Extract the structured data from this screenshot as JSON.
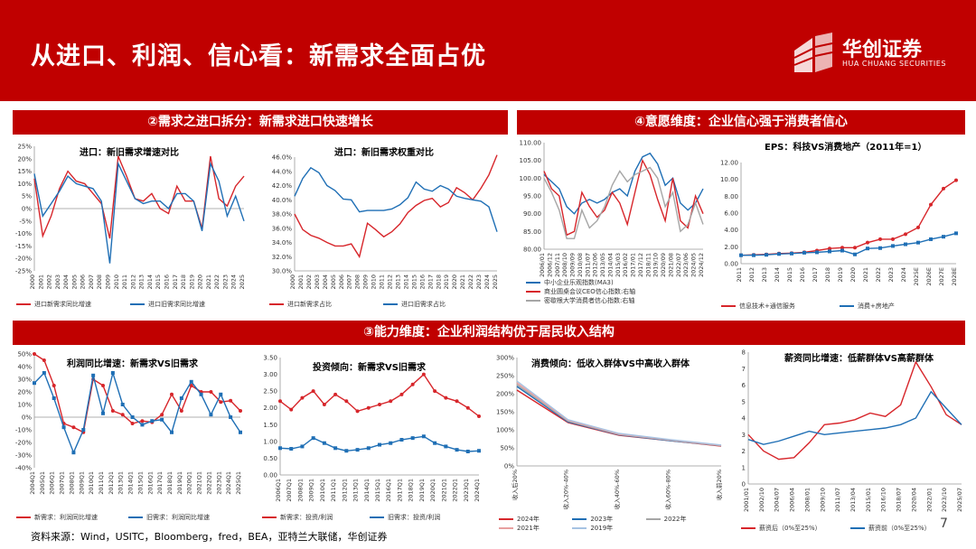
{
  "page": {
    "title": "从进口、利润、信心看：新需求全面占优",
    "logo_cn": "华创证券",
    "logo_en": "HUA CHUANG SECURITIES",
    "band1": "②需求之进口拆分：新需求进口快速增长",
    "band2": "④意愿维度：企业信心强于消费者信心",
    "band3": "③能力维度：企业利润结构优于居民收入结构",
    "source": "资料来源：Wind，USITC，Bloomberg，fred，BEA，亚特兰大联储，华创证券",
    "page_number": "7"
  },
  "colors": {
    "red": "#d7262b",
    "blue": "#1f6fb5",
    "gray": "#a6a6a6",
    "brand": "#c00000"
  },
  "chart_data": [
    {
      "id": "c1",
      "type": "line",
      "title": "进口：新旧需求增速对比",
      "x": [
        "2000",
        "2001",
        "2002",
        "2003",
        "2004",
        "2005",
        "2006",
        "2007",
        "2008",
        "2009",
        "2010",
        "2011",
        "2012",
        "2013",
        "2014",
        "2015",
        "2016",
        "2017",
        "2018",
        "2019",
        "2020",
        "2021",
        "2022",
        "2023",
        "2024",
        "2025"
      ],
      "ylim": [
        -25,
        25
      ],
      "yticks": [
        "25%",
        "20%",
        "15%",
        "10%",
        "5%",
        "0%",
        "-5%",
        "-10%",
        "-15%",
        "-20%",
        "-25%"
      ],
      "series": [
        {
          "name": "进口新需求同比增速",
          "color": "red",
          "values": [
            12,
            -11,
            -3,
            8,
            15,
            11,
            10,
            6,
            2,
            -12,
            21,
            13,
            4,
            3,
            6,
            0,
            -2,
            9,
            3,
            3,
            -8,
            21,
            4,
            1,
            9,
            13
          ]
        },
        {
          "name": "进口旧需求同比增速",
          "color": "blue",
          "values": [
            14,
            -3,
            2,
            7,
            13,
            10,
            9,
            8,
            3,
            -22,
            18,
            11,
            4,
            2,
            3,
            3,
            0,
            6,
            6,
            3,
            -9,
            18,
            11,
            -3,
            5,
            -5
          ]
        }
      ]
    },
    {
      "id": "c2",
      "type": "line",
      "title": "进口：新旧需求权重对比",
      "x": [
        "2000",
        "2001",
        "2002",
        "2003",
        "2004",
        "2005",
        "2006",
        "2007",
        "2008",
        "2009",
        "2010",
        "2011",
        "2012",
        "2013",
        "2014",
        "2015",
        "2016",
        "2017",
        "2018",
        "2019",
        "2020",
        "2021",
        "2022",
        "2023",
        "2024",
        "2025"
      ],
      "ylim": [
        30,
        46
      ],
      "yticks": [
        "46.0%",
        "44.0%",
        "42.0%",
        "40.0%",
        "38.0%",
        "36.0%",
        "34.0%",
        "32.0%",
        "30.0%"
      ],
      "series": [
        {
          "name": "进口新需求占比",
          "color": "red",
          "values": [
            38,
            35.8,
            35,
            34.6,
            34,
            33.5,
            33.5,
            33.8,
            32,
            36.7,
            35.8,
            34.8,
            35.5,
            36.6,
            38.2,
            39.2,
            39.9,
            40.2,
            39,
            39.6,
            41.7,
            41,
            40,
            41.6,
            43.5,
            46.3
          ]
        },
        {
          "name": "进口旧需求占比",
          "color": "blue",
          "values": [
            40.5,
            43,
            44.5,
            43.8,
            42,
            41.3,
            40.1,
            40,
            38.3,
            38.5,
            38.5,
            38.5,
            38.7,
            39.3,
            40.3,
            42.5,
            41.5,
            41.2,
            42,
            41.5,
            40.5,
            40.2,
            40,
            39.8,
            39,
            35.5
          ]
        }
      ]
    },
    {
      "id": "c3",
      "type": "line",
      "title": "",
      "x": [
        "2006/01",
        "2006/12",
        "2007/11",
        "2008/10",
        "2009/09",
        "2010/08",
        "2011/07",
        "2012/06",
        "2013/05",
        "2014/04",
        "2015/03",
        "2016/02",
        "2017/01",
        "2017/12",
        "2018/11",
        "2019/10",
        "2020/09",
        "2021/08",
        "2022/07",
        "2023/06",
        "2024/05",
        "2024/12"
      ],
      "ylim": [
        80,
        110
      ],
      "yticks": [
        "110.00",
        "105.00",
        "100.00",
        "95.00",
        "90.00",
        "85.00",
        "80.00"
      ],
      "series": [
        {
          "name": "中小企业乐观指数(MA3)",
          "color": "blue",
          "values": [
            101,
            99,
            97,
            92,
            90,
            93,
            94,
            93,
            94,
            96,
            97,
            95,
            102,
            106,
            107,
            104,
            98,
            100,
            93,
            91,
            93,
            97
          ]
        },
        {
          "name": "商业圆桌会议CEO信心指数:右轴",
          "color": "red",
          "values": [
            102,
            97,
            95,
            84,
            85,
            96,
            92,
            89,
            91,
            96,
            93,
            87,
            96,
            105,
            101,
            94,
            88,
            100,
            88,
            86,
            95,
            90
          ]
        },
        {
          "name": "密歇根大学消费者信心指数:右轴",
          "color": "gray",
          "values": [
            100,
            96,
            91,
            83,
            83,
            91,
            86,
            88,
            92,
            98,
            102,
            99,
            101,
            102,
            103,
            100,
            92,
            96,
            85,
            87,
            93,
            87
          ]
        }
      ]
    },
    {
      "id": "c4",
      "type": "line",
      "title": "EPS：科技VS消费地产（2011年=1）",
      "x": [
        "2011",
        "2012",
        "2013",
        "2014",
        "2015",
        "2016",
        "2017",
        "2018",
        "2019",
        "2020",
        "2021",
        "2022",
        "2023",
        "2024",
        "2025E",
        "2026E",
        "2027E",
        "2028E"
      ],
      "ylim": [
        0,
        12
      ],
      "yticks": [
        "12.00",
        "10.00",
        "8.00",
        "6.00",
        "4.00",
        "2.00",
        "0.00"
      ],
      "series": [
        {
          "name": "信息技术+通信服务",
          "color": "red",
          "values": [
            1,
            1.05,
            1.1,
            1.2,
            1.25,
            1.35,
            1.55,
            1.8,
            1.9,
            1.9,
            2.5,
            2.9,
            2.9,
            3.5,
            4.3,
            7,
            8.9,
            9.9
          ]
        },
        {
          "name": "消费+房地产",
          "color": "blue",
          "values": [
            1,
            1,
            1.05,
            1.15,
            1.2,
            1.3,
            1.35,
            1.45,
            1.55,
            1.1,
            1.8,
            1.85,
            2.1,
            2.3,
            2.5,
            2.9,
            3.2,
            3.6
          ]
        }
      ]
    },
    {
      "id": "c5",
      "type": "line",
      "title": "利润同比增速：新需求VS旧需求",
      "x": [
        "2004Q1",
        "2005Q1",
        "2006Q1",
        "2007Q1",
        "2008Q1",
        "2009Q1",
        "2010Q1",
        "2011Q1",
        "2012Q1",
        "2013Q1",
        "2014Q1",
        "2015Q1",
        "2016Q1",
        "2017Q1",
        "2018Q1",
        "2019Q1",
        "2020Q1",
        "2021Q1",
        "2022Q1",
        "2023Q1",
        "2024Q1",
        "2025Q1"
      ],
      "ylim": [
        -40,
        50
      ],
      "yticks": [
        "50%",
        "40%",
        "30%",
        "20%",
        "10%",
        "0%",
        "-10%",
        "-20%",
        "-30%",
        "-40%"
      ],
      "series": [
        {
          "name": "新需求：利润同比增速",
          "color": "red",
          "values": [
            50,
            45,
            25,
            -5,
            -8,
            -12,
            30,
            25,
            5,
            2,
            -5,
            -3,
            -4,
            2,
            18,
            5,
            25,
            20,
            20,
            12,
            13,
            5
          ]
        },
        {
          "name": "旧需求：利润同比增速",
          "color": "blue",
          "values": [
            27,
            35,
            15,
            -8,
            -28,
            -10,
            33,
            3,
            35,
            10,
            0,
            -6,
            -3,
            -2,
            -12,
            15,
            28,
            18,
            2,
            18,
            0,
            -12
          ]
        }
      ]
    },
    {
      "id": "c6",
      "type": "line",
      "title": "投资倾向：新需求VS旧需求",
      "x": [
        "2006Q1",
        "2007Q1",
        "2008Q1",
        "2009Q1",
        "2010Q1",
        "2011Q1",
        "2012Q1",
        "2013Q1",
        "2014Q1",
        "2015Q1",
        "2016Q1",
        "2017Q1",
        "2018Q1",
        "2019Q1",
        "2020Q1",
        "2021Q1",
        "2022Q1",
        "2023Q1",
        "2024Q1"
      ],
      "ylim": [
        0,
        3.5
      ],
      "yticks": [
        "3.50",
        "3.00",
        "2.50",
        "2.00",
        "1.50",
        "1.00",
        "0.50",
        "0.00"
      ],
      "series": [
        {
          "name": "新需求：投资/利润",
          "color": "red",
          "values": [
            2.2,
            1.95,
            2.3,
            2.5,
            2.1,
            2.4,
            2.2,
            1.9,
            2.0,
            2.1,
            2.2,
            2.4,
            2.7,
            3.0,
            2.5,
            2.3,
            2.2,
            2.0,
            1.75
          ]
        },
        {
          "name": "旧需求：投资/利润",
          "color": "blue",
          "values": [
            0.8,
            0.78,
            0.85,
            1.1,
            0.95,
            0.8,
            0.72,
            0.75,
            0.8,
            0.9,
            0.95,
            1.05,
            1.1,
            1.15,
            0.95,
            0.85,
            0.75,
            0.7,
            0.72
          ]
        }
      ]
    },
    {
      "id": "c7",
      "type": "line",
      "title": "消费倾向：低收入群体VS中高收入群体",
      "x": [
        "收入后20%",
        "收入20%-40%",
        "收入40%-60%",
        "收入60%-80%",
        "收入前20%"
      ],
      "ylim": [
        0,
        3.0
      ],
      "yticks": [
        "300%",
        "250%",
        "200%",
        "150%",
        "100%",
        "50%",
        "0%"
      ],
      "series": [
        {
          "name": "2024年",
          "color": "red",
          "values": [
            2.1,
            1.2,
            0.85,
            0.7,
            0.55
          ]
        },
        {
          "name": "2023年",
          "color": "blue",
          "values": [
            2.2,
            1.22,
            0.86,
            0.7,
            0.56
          ]
        },
        {
          "name": "2022年",
          "color": "gray",
          "values": [
            2.25,
            1.24,
            0.87,
            0.71,
            0.56
          ]
        },
        {
          "name": "2021年",
          "color": "#e8a0a0",
          "values": [
            2.3,
            1.26,
            0.88,
            0.72,
            0.57
          ]
        },
        {
          "name": "2019年",
          "color": "#a6c3e3",
          "values": [
            2.35,
            1.28,
            0.9,
            0.73,
            0.58
          ]
        }
      ]
    },
    {
      "id": "c8",
      "type": "line",
      "title": "薪资同比增速：低薪群体VS高薪群体",
      "x": [
        "2001/01",
        "2002/10",
        "2004/07",
        "2006/04",
        "2008/01",
        "2009/10",
        "2011/07",
        "2013/04",
        "2015/01",
        "2016/10",
        "2018/07",
        "2020/04",
        "2022/01",
        "2023/10",
        "2025/07"
      ],
      "ylim": [
        0,
        8
      ],
      "yticks": [
        "8",
        "7",
        "6",
        "5",
        "4",
        "3",
        "2",
        "1",
        "0"
      ],
      "series": [
        {
          "name": "薪资后（0%至25%）",
          "color": "red",
          "values": [
            3.0,
            2.0,
            1.5,
            1.6,
            2.5,
            3.6,
            3.7,
            3.9,
            4.3,
            4.1,
            4.8,
            7.4,
            5.9,
            4.2,
            3.6
          ]
        },
        {
          "name": "薪资前（0%至25%）",
          "color": "blue",
          "values": [
            2.7,
            2.4,
            2.6,
            2.9,
            3.2,
            3.0,
            3.1,
            3.2,
            3.3,
            3.4,
            3.6,
            4.0,
            5.6,
            4.6,
            3.6
          ]
        }
      ]
    }
  ]
}
